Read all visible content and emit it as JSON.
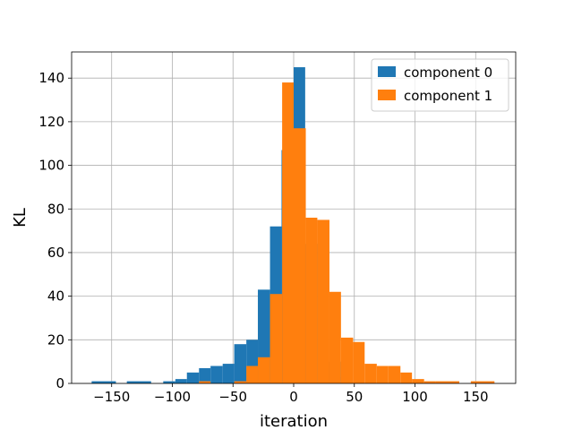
{
  "chart_data": {
    "type": "bar",
    "xlabel": "iteration",
    "ylabel": "KL",
    "xlim": [
      -183,
      183
    ],
    "ylim": [
      0,
      152
    ],
    "xticks": [
      -150,
      -100,
      -50,
      0,
      50,
      100,
      150
    ],
    "yticks": [
      0,
      20,
      40,
      60,
      80,
      100,
      120,
      140
    ],
    "grid": true,
    "legend_position": "top-right",
    "series": [
      {
        "name": "component 0",
        "color": "#1f77b4",
        "bins": [
          {
            "x0": -166.5,
            "x1": -146.5,
            "count": 1
          },
          {
            "x0": -137.5,
            "x1": -117.5,
            "count": 1
          },
          {
            "x0": -107.5,
            "x1": -97.5,
            "count": 1
          },
          {
            "x0": -97.5,
            "x1": -88.0,
            "count": 2
          },
          {
            "x0": -88.0,
            "x1": -78.0,
            "count": 5
          },
          {
            "x0": -78.0,
            "x1": -68.5,
            "count": 7
          },
          {
            "x0": -68.5,
            "x1": -58.5,
            "count": 8
          },
          {
            "x0": -58.5,
            "x1": -49.0,
            "count": 9
          },
          {
            "x0": -49.0,
            "x1": -39.0,
            "count": 18
          },
          {
            "x0": -39.0,
            "x1": -29.5,
            "count": 20
          },
          {
            "x0": -29.5,
            "x1": -19.5,
            "count": 43
          },
          {
            "x0": -19.5,
            "x1": -10.0,
            "count": 72
          },
          {
            "x0": -10.0,
            "x1": 0.0,
            "count": 107
          },
          {
            "x0": 0.0,
            "x1": 9.5,
            "count": 145
          },
          {
            "x0": 9.5,
            "x1": 19.5,
            "count": 64
          },
          {
            "x0": 19.5,
            "x1": 29.0,
            "count": 30
          },
          {
            "x0": 29.0,
            "x1": 39.0,
            "count": 10
          },
          {
            "x0": 39.0,
            "x1": 48.5,
            "count": 3
          }
        ]
      },
      {
        "name": "component 1",
        "color": "#ff7f0e",
        "bins": [
          {
            "x0": -78.0,
            "x1": -68.5,
            "count": 1
          },
          {
            "x0": -49.0,
            "x1": -39.0,
            "count": 1
          },
          {
            "x0": -39.0,
            "x1": -29.5,
            "count": 8
          },
          {
            "x0": -29.5,
            "x1": -19.5,
            "count": 12
          },
          {
            "x0": -19.5,
            "x1": -9.5,
            "count": 41
          },
          {
            "x0": -9.5,
            "x1": 0.0,
            "count": 138
          },
          {
            "x0": 0.0,
            "x1": 10.0,
            "count": 117
          },
          {
            "x0": 10.0,
            "x1": 19.5,
            "count": 76
          },
          {
            "x0": 19.5,
            "x1": 29.5,
            "count": 75
          },
          {
            "x0": 29.5,
            "x1": 39.0,
            "count": 42
          },
          {
            "x0": 39.0,
            "x1": 49.0,
            "count": 21
          },
          {
            "x0": 49.0,
            "x1": 58.5,
            "count": 19
          },
          {
            "x0": 58.5,
            "x1": 68.5,
            "count": 9
          },
          {
            "x0": 68.5,
            "x1": 78.0,
            "count": 8
          },
          {
            "x0": 78.0,
            "x1": 88.0,
            "count": 8
          },
          {
            "x0": 88.0,
            "x1": 97.5,
            "count": 5
          },
          {
            "x0": 97.5,
            "x1": 107.5,
            "count": 2
          },
          {
            "x0": 107.5,
            "x1": 117.0,
            "count": 1
          },
          {
            "x0": 117.0,
            "x1": 136.5,
            "count": 1
          },
          {
            "x0": 146.0,
            "x1": 165.5,
            "count": 1
          }
        ]
      }
    ]
  }
}
